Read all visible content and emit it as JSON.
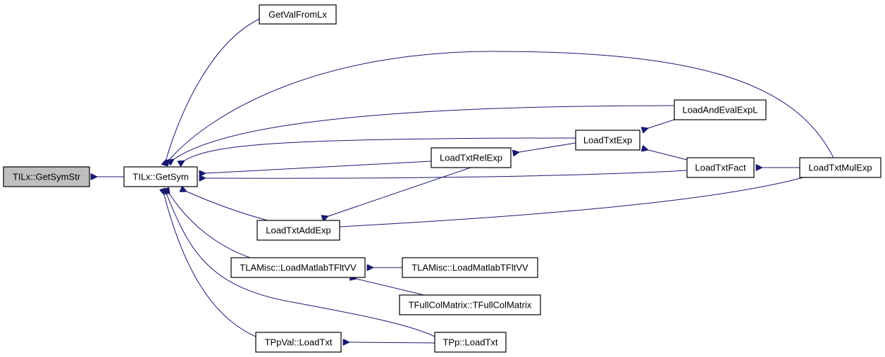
{
  "colors": {
    "edge": "#191970",
    "root_fill": "#bfbfbf",
    "node_fill": "#ffffff"
  },
  "nodes": [
    {
      "id": "getsymstr",
      "label": "TILx::GetSymStr",
      "root": true
    },
    {
      "id": "getsym",
      "label": "TILx::GetSym"
    },
    {
      "id": "getvalfromlx",
      "label": "GetValFromLx"
    },
    {
      "id": "loadandevalexpl",
      "label": "LoadAndEvalExpL"
    },
    {
      "id": "loadtxtexp",
      "label": "LoadTxtExp"
    },
    {
      "id": "loadtxtrelexp",
      "label": "LoadTxtRelExp"
    },
    {
      "id": "loadtxtfact",
      "label": "LoadTxtFact"
    },
    {
      "id": "loadtxtmulexp",
      "label": "LoadTxtMulExp"
    },
    {
      "id": "loadtxtaddexp",
      "label": "LoadTxtAddExp"
    },
    {
      "id": "tlamisc-a",
      "label": "TLAMisc::LoadMatlabTFltVV"
    },
    {
      "id": "tlamisc-b",
      "label": "TLAMisc::LoadMatlabTFltVV"
    },
    {
      "id": "tfullcolmatrix",
      "label": "TFullColMatrix::TFullColMatrix"
    },
    {
      "id": "tppval",
      "label": "TPpVal::LoadTxt"
    },
    {
      "id": "tpp",
      "label": "TPp::LoadTxt"
    }
  ],
  "edges": [
    {
      "from": "getsym",
      "to": "getsymstr"
    },
    {
      "from": "getvalfromlx",
      "to": "getsym"
    },
    {
      "from": "loadtxtmulexp",
      "to": "getsym"
    },
    {
      "from": "loadandevalexpl",
      "to": "getsym"
    },
    {
      "from": "loadtxtexp",
      "to": "getsym"
    },
    {
      "from": "loadtxtrelexp",
      "to": "getsym"
    },
    {
      "from": "loadtxtfact",
      "to": "getsym"
    },
    {
      "from": "loadtxtaddexp",
      "to": "getsym"
    },
    {
      "from": "tlamisc-a",
      "to": "getsym"
    },
    {
      "from": "tpp",
      "to": "getsym"
    },
    {
      "from": "tppval",
      "to": "getsym"
    },
    {
      "from": "loadtxtexp",
      "to": "loadtxtrelexp"
    },
    {
      "from": "loadandevalexpl",
      "to": "loadtxtexp"
    },
    {
      "from": "loadtxtfact",
      "to": "loadtxtexp"
    },
    {
      "from": "loadtxtmulexp",
      "to": "loadtxtfact"
    },
    {
      "from": "loadtxtrelexp",
      "to": "loadtxtaddexp"
    },
    {
      "from": "loadtxtmulexp",
      "to": "loadtxtaddexp"
    },
    {
      "from": "tlamisc-b",
      "to": "tlamisc-a"
    },
    {
      "from": "tfullcolmatrix",
      "to": "tlamisc-a"
    },
    {
      "from": "tpp",
      "to": "tppval"
    }
  ]
}
